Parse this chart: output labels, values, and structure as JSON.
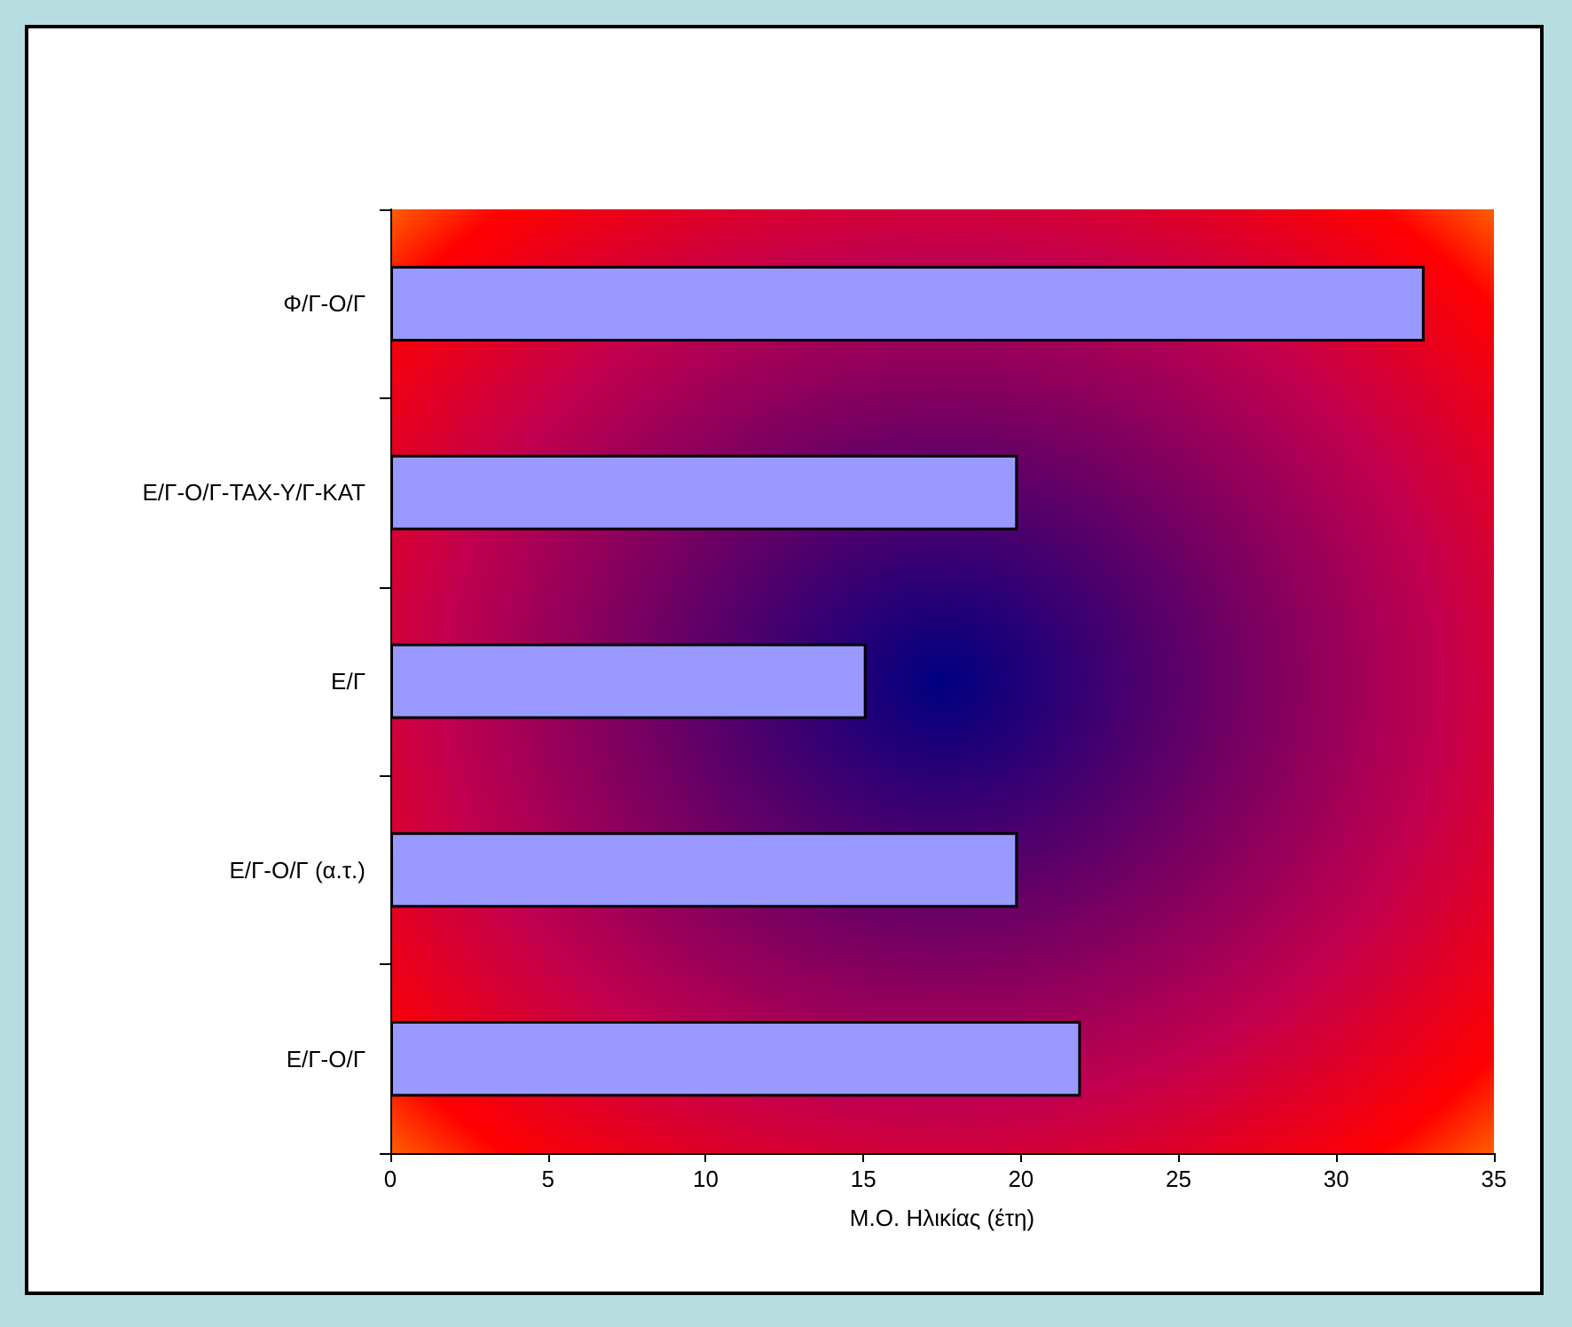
{
  "chart_data": {
    "type": "bar",
    "orientation": "horizontal",
    "xlabel": "Μ.Ο. Ηλικίας (έτη)",
    "categories": [
      "Φ/Γ-Ο/Γ",
      "Ε/Γ-Ο/Γ-ΤΑΧ-Υ/Γ-ΚΑΤ",
      "Ε/Γ",
      "Ε/Γ-Ο/Γ (α.τ.)",
      "Ε/Γ-Ο/Γ"
    ],
    "values": [
      32.8,
      19.9,
      15.1,
      19.9,
      21.9
    ],
    "color": "#9999ff",
    "xlim": [
      0,
      35
    ],
    "xticks": [
      0,
      5,
      10,
      15,
      20,
      25,
      30,
      35
    ],
    "grid": false
  }
}
